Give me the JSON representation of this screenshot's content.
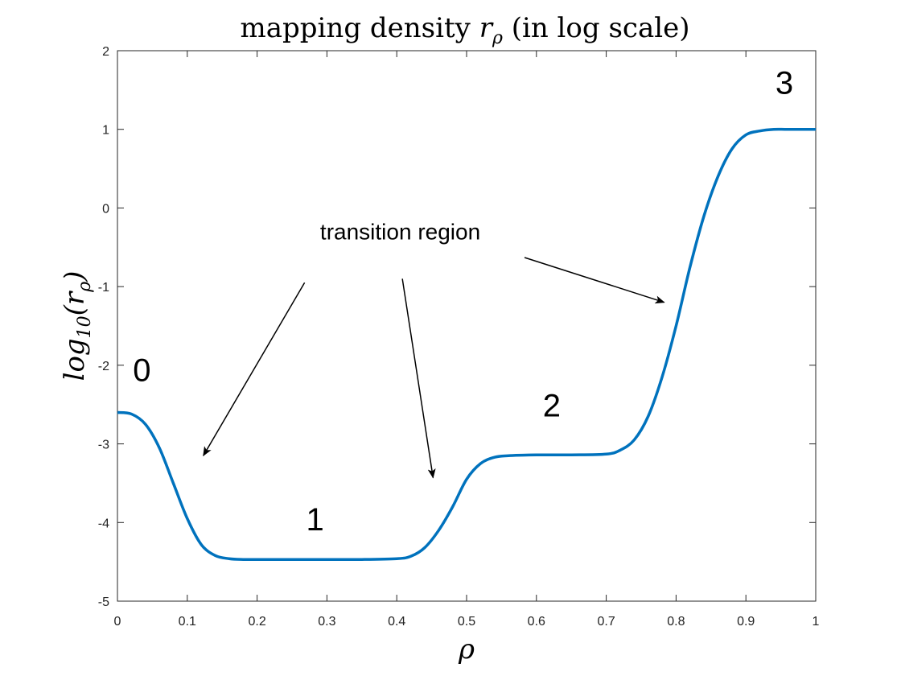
{
  "chart_data": {
    "type": "line",
    "title_prefix": "mapping density ",
    "title_symbol": "r",
    "title_subscript": "ρ",
    "title_suffix": " (in log scale)",
    "xlabel": "ρ",
    "ylabel_func": "log",
    "ylabel_base": "10",
    "ylabel_arg": "r",
    "ylabel_arg_subscript": "ρ",
    "xlim": [
      0,
      1
    ],
    "ylim": [
      -5,
      2
    ],
    "xticks": [
      0,
      0.1,
      0.2,
      0.3,
      0.4,
      0.5,
      0.6,
      0.7,
      0.8,
      0.9,
      1
    ],
    "xtick_labels": [
      "0",
      "0.1",
      "0.2",
      "0.3",
      "0.4",
      "0.5",
      "0.6",
      "0.7",
      "0.8",
      "0.9",
      "1"
    ],
    "yticks": [
      -5,
      -4,
      -3,
      -2,
      -1,
      0,
      1,
      2
    ],
    "ytick_labels": [
      "-5",
      "-4",
      "-3",
      "-2",
      "-1",
      "0",
      "1",
      "2"
    ],
    "grid": false,
    "series": [
      {
        "color": "#0072BD",
        "x": [
          0,
          0.02,
          0.04,
          0.06,
          0.08,
          0.1,
          0.12,
          0.14,
          0.16,
          0.18,
          0.2,
          0.25,
          0.3,
          0.35,
          0.4,
          0.42,
          0.44,
          0.46,
          0.48,
          0.5,
          0.52,
          0.54,
          0.56,
          0.6,
          0.65,
          0.7,
          0.72,
          0.74,
          0.76,
          0.78,
          0.8,
          0.82,
          0.84,
          0.86,
          0.88,
          0.9,
          0.92,
          0.94,
          0.96,
          1.0
        ],
        "y": [
          -2.6,
          -2.62,
          -2.75,
          -3.05,
          -3.5,
          -3.95,
          -4.28,
          -4.42,
          -4.46,
          -4.47,
          -4.47,
          -4.47,
          -4.47,
          -4.47,
          -4.46,
          -4.43,
          -4.32,
          -4.1,
          -3.8,
          -3.45,
          -3.25,
          -3.17,
          -3.15,
          -3.14,
          -3.14,
          -3.13,
          -3.08,
          -2.95,
          -2.65,
          -2.15,
          -1.5,
          -0.75,
          -0.1,
          0.4,
          0.75,
          0.93,
          0.98,
          1.0,
          1.0,
          1.0
        ]
      }
    ],
    "annotations": {
      "region_labels": [
        {
          "text": "0",
          "x": 0.035,
          "y": -2.2
        },
        {
          "text": "1",
          "x": 0.283,
          "y": -4.1
        },
        {
          "text": "2",
          "x": 0.622,
          "y": -2.65
        },
        {
          "text": "3",
          "x": 0.955,
          "y": 1.45
        }
      ],
      "transition_label": {
        "text": "transition region",
        "x": 0.405,
        "y": -0.4
      },
      "arrows": [
        {
          "x1": 0.268,
          "y1": -0.95,
          "x2": 0.123,
          "y2": -3.15
        },
        {
          "x1": 0.408,
          "y1": -0.9,
          "x2": 0.452,
          "y2": -3.43
        },
        {
          "x1": 0.583,
          "y1": -0.63,
          "x2": 0.783,
          "y2": -1.2
        }
      ]
    }
  }
}
